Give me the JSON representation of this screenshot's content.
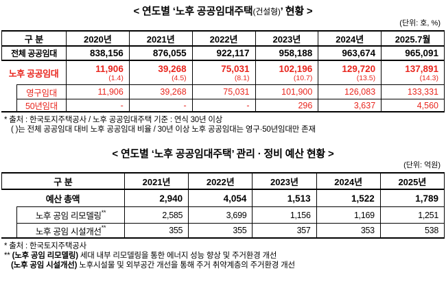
{
  "colors": {
    "accent_red": "#e8251d",
    "border": "#000000",
    "background": "#ffffff"
  },
  "table1": {
    "title_prefix": "< 연도별 ‘노후 공공임대주택",
    "title_small": "(건설형)",
    "title_suffix": "’ 현황 >",
    "unit": "(단위: 호, %)",
    "columns": [
      "구 분",
      "2020년",
      "2021년",
      "2022년",
      "2023년",
      "2024년",
      "2025.7월"
    ],
    "rows": {
      "total": {
        "label": "전체 공공임대",
        "values": [
          "838,156",
          "876,055",
          "922,117",
          "958,188",
          "963,674",
          "965,091"
        ]
      },
      "old": {
        "label": "노후 공공임대",
        "values": [
          "11,906",
          "39,268",
          "75,031",
          "102,196",
          "129,720",
          "137,891"
        ],
        "ratios": [
          "(1.4)",
          "(4.5)",
          "(8.1)",
          "(10.7)",
          "(13.5)",
          "(14.3)"
        ]
      },
      "permanent": {
        "label": "영구임대",
        "values": [
          "11,906",
          "39,268",
          "75,031",
          "101,900",
          "126,083",
          "133,331"
        ]
      },
      "fifty": {
        "label": "50년임대",
        "values": [
          "-",
          "-",
          "-",
          "296",
          "3,637",
          "4,560"
        ]
      }
    },
    "footnotes": {
      "line1": "* 출처 : 한국토지주택공사 / 노후 공공임대주택 기준 : 연식 30년 이상",
      "line2": "( )는 전체 공공임대 대비 노후 공공임대 비율 / 30년 이상 노후 공공임대는 영구·50년임대만 존재"
    }
  },
  "table2": {
    "title": "< 연도별 ‘노후 공공임대주택’ 관리 · 정비 예산 현황 >",
    "unit": "(단위: 억원)",
    "columns": [
      "구 분",
      "2021년",
      "2022년",
      "2023년",
      "2024년",
      "2025년"
    ],
    "rows": {
      "budget_total": {
        "label": "예산 총액",
        "values": [
          "2,940",
          "4,054",
          "1,513",
          "1,522",
          "1,789"
        ]
      },
      "remodeling": {
        "label": "노후 공임 리모델링",
        "marker": "**",
        "values": [
          "2,585",
          "3,699",
          "1,156",
          "1,169",
          "1,251"
        ]
      },
      "facility": {
        "label": "노후 공임 시설개선",
        "marker": "**",
        "values": [
          "355",
          "355",
          "357",
          "353",
          "538"
        ]
      }
    },
    "footnotes": {
      "source": "* 출처 : 한국토지주택공사",
      "line2_marker": "**",
      "line2_bold": "(노후 공임 리모델링)",
      "line2_rest": "세대 내부 리모델링을 통한 에너지 성능 향상 및 주거환경 개선",
      "line3_bold": "(노후 공임 시설개선)",
      "line3_rest": "노후시설물 및 외부공간 개선을 통해 주거 취약계층의 주거환경 개선"
    }
  }
}
